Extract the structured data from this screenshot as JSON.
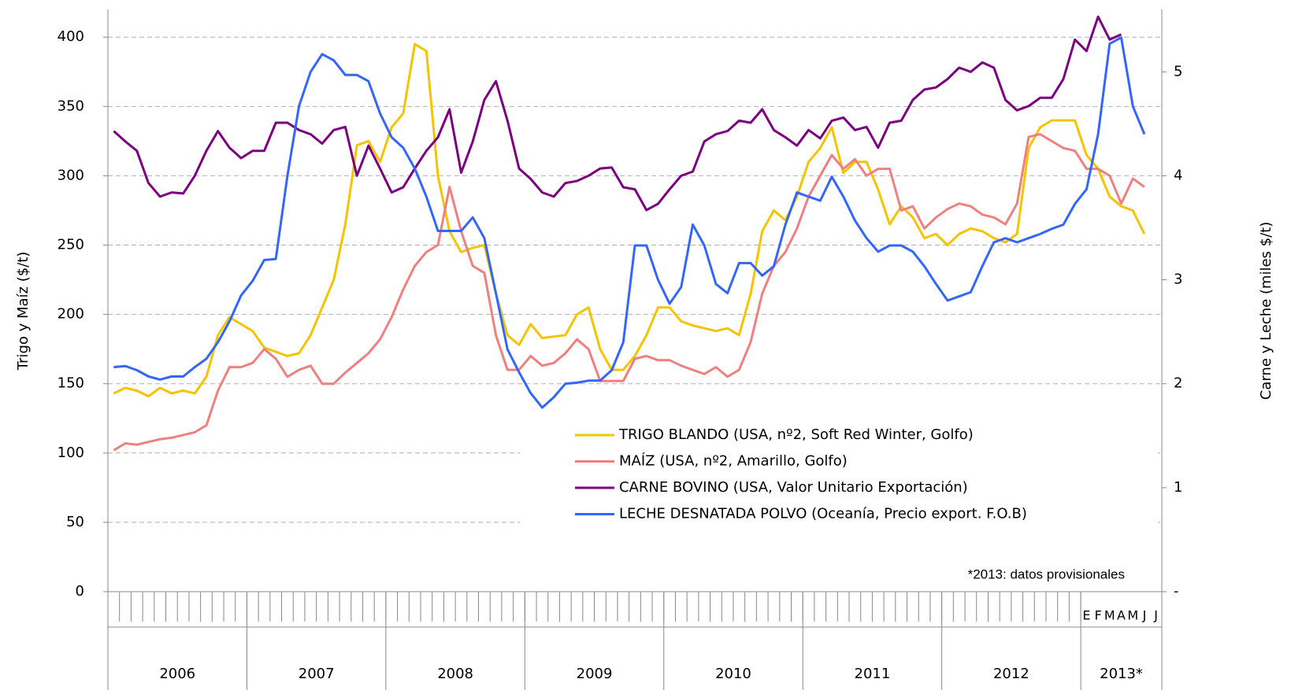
{
  "chart_data": {
    "type": "line",
    "y_label": "Trigo y Maíz ($/t)",
    "y2_label": "Carne y Leche (miles $/t)",
    "annotation": "*2013: datos provisionales",
    "year_labels": [
      "2006",
      "2007",
      "2008",
      "2009",
      "2010",
      "2011",
      "2012",
      "2013*"
    ],
    "categories": [
      null,
      null,
      null,
      null,
      null,
      null,
      null,
      null,
      null,
      null,
      null,
      null,
      null,
      null,
      null,
      null,
      null,
      null,
      null,
      null,
      null,
      null,
      null,
      null,
      null,
      null,
      null,
      null,
      null,
      null,
      null,
      null,
      null,
      null,
      null,
      null,
      null,
      null,
      null,
      null,
      null,
      null,
      null,
      null,
      null,
      null,
      null,
      null,
      null,
      null,
      null,
      null,
      null,
      null,
      null,
      null,
      null,
      null,
      null,
      null,
      null,
      null,
      null,
      null,
      null,
      null,
      null,
      null,
      null,
      null,
      null,
      null,
      null,
      null,
      null,
      null,
      null,
      null,
      null,
      null,
      null,
      null,
      null,
      null,
      "E",
      "F",
      "M",
      "A",
      "M",
      "J",
      "J"
    ],
    "ylim": [
      0,
      420
    ],
    "yticks": [
      0,
      50,
      100,
      150,
      200,
      250,
      300,
      350,
      400
    ],
    "y2lim": [
      0,
      5.6
    ],
    "y2ticks": [
      {
        "value": 0,
        "label": "-"
      },
      1,
      2,
      3,
      4,
      5
    ],
    "grid": true,
    "legend": "lower-right",
    "series": [
      {
        "name": "TRIGO BLANDO (USA, nº2, Soft Red Winter, Golfo)",
        "color": "#f5c400",
        "values": [
          143,
          147,
          145,
          141,
          147,
          143,
          145,
          143,
          155,
          185,
          198,
          193,
          188,
          176,
          173,
          170,
          172,
          185,
          205,
          225,
          265,
          322,
          325,
          310,
          335,
          345,
          395,
          390,
          300,
          260,
          245,
          248,
          250,
          215,
          185,
          178,
          193,
          183,
          184,
          185,
          200,
          205,
          175,
          160,
          160,
          170,
          185,
          205,
          205,
          195,
          192,
          190,
          188,
          190,
          185,
          215,
          260,
          275,
          268,
          285,
          310,
          320,
          335,
          302,
          310,
          310,
          290,
          265,
          278,
          270,
          255,
          258,
          250,
          258,
          262,
          260,
          255,
          252,
          258,
          320,
          335,
          340,
          340,
          340,
          315,
          305,
          285,
          278,
          275,
          258,
          null
        ]
      },
      {
        "name": "MAÍZ (USA, nº2, Amarillo, Golfo)",
        "color": "#f08080",
        "values": [
          102,
          107,
          106,
          108,
          110,
          111,
          113,
          115,
          120,
          145,
          162,
          162,
          165,
          175,
          168,
          155,
          160,
          163,
          150,
          150,
          158,
          165,
          172,
          182,
          198,
          218,
          235,
          245,
          250,
          292,
          260,
          235,
          230,
          185,
          160,
          160,
          170,
          163,
          165,
          172,
          182,
          175,
          152,
          152,
          152,
          168,
          170,
          167,
          167,
          163,
          160,
          157,
          162,
          155,
          160,
          180,
          215,
          235,
          245,
          262,
          285,
          300,
          315,
          305,
          312,
          300,
          305,
          305,
          275,
          278,
          262,
          270,
          276,
          280,
          278,
          272,
          270,
          265,
          280,
          328,
          330,
          325,
          320,
          318,
          305,
          305,
          300,
          280,
          298,
          292,
          null
        ]
      },
      {
        "name": "CARNE BOVINO (USA, Valor Unitario Exportación)",
        "color": "#7b0080",
        "axis": "y2",
        "values": [
          4.43,
          4.33,
          4.24,
          3.93,
          3.8,
          3.84,
          3.83,
          4.0,
          4.24,
          4.43,
          4.27,
          4.17,
          4.24,
          4.24,
          4.51,
          4.51,
          4.44,
          4.4,
          4.31,
          4.44,
          4.47,
          4.0,
          4.29,
          4.07,
          3.84,
          3.89,
          4.07,
          4.24,
          4.37,
          4.64,
          4.03,
          4.33,
          4.73,
          4.91,
          4.53,
          4.07,
          3.97,
          3.84,
          3.8,
          3.93,
          3.95,
          4.0,
          4.07,
          4.08,
          3.89,
          3.87,
          3.67,
          3.73,
          3.87,
          4.0,
          4.04,
          4.33,
          4.4,
          4.43,
          4.53,
          4.51,
          4.64,
          4.44,
          4.37,
          4.29,
          4.44,
          4.36,
          4.53,
          4.56,
          4.44,
          4.47,
          4.27,
          4.51,
          4.53,
          4.73,
          4.83,
          4.85,
          4.93,
          5.04,
          5.0,
          5.09,
          5.04,
          4.73,
          4.63,
          4.67,
          4.75,
          4.75,
          4.93,
          5.31,
          5.2,
          5.53,
          5.31,
          5.36,
          null,
          null,
          null
        ]
      },
      {
        "name": "LECHE DESNATADA POLVO (Oceanía, Precio export. F.O.B)",
        "color": "#3366ff",
        "axis": "y2",
        "values": [
          2.16,
          2.17,
          2.13,
          2.07,
          2.04,
          2.07,
          2.07,
          2.16,
          2.24,
          2.4,
          2.6,
          2.85,
          2.99,
          3.19,
          3.2,
          4.0,
          4.67,
          5.0,
          5.17,
          5.11,
          4.97,
          4.97,
          4.91,
          4.6,
          4.37,
          4.27,
          4.07,
          3.8,
          3.47,
          3.47,
          3.47,
          3.6,
          3.4,
          2.87,
          2.33,
          2.11,
          1.91,
          1.77,
          1.87,
          2.0,
          2.01,
          2.03,
          2.03,
          2.13,
          2.4,
          3.33,
          3.33,
          3.0,
          2.77,
          2.93,
          3.53,
          3.33,
          2.96,
          2.87,
          3.16,
          3.16,
          3.04,
          3.13,
          3.53,
          3.84,
          3.8,
          3.76,
          3.99,
          3.8,
          3.57,
          3.4,
          3.27,
          3.33,
          3.33,
          3.27,
          3.13,
          2.96,
          2.8,
          2.84,
          2.88,
          3.13,
          3.36,
          3.4,
          3.36,
          3.4,
          3.44,
          3.49,
          3.53,
          3.73,
          3.87,
          4.4,
          5.27,
          5.33,
          4.67,
          4.4,
          null
        ]
      }
    ]
  }
}
